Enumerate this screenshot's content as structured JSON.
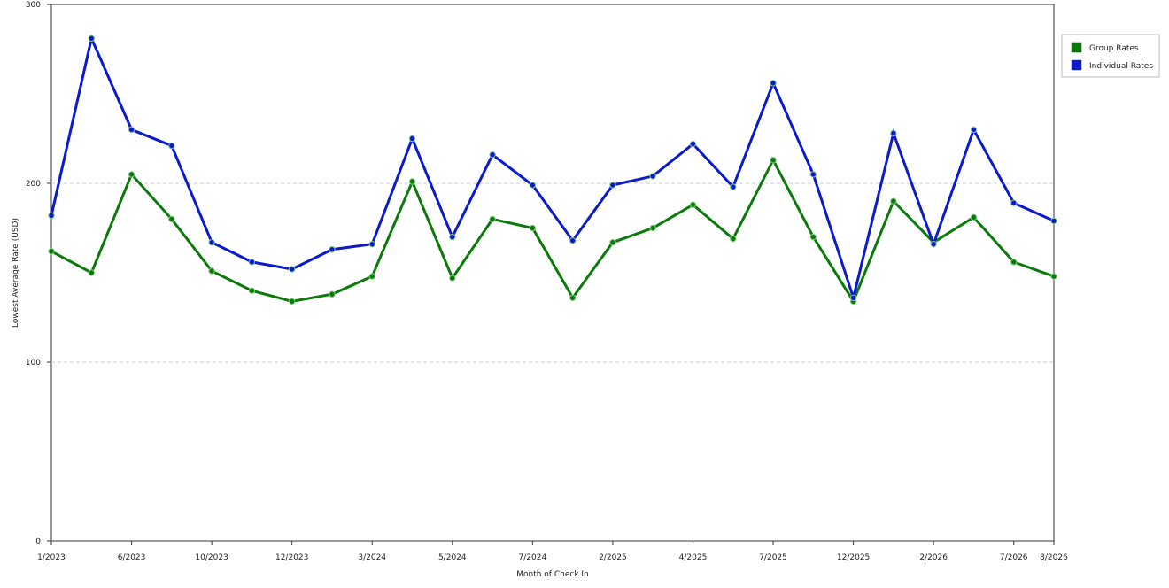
{
  "chart_data": {
    "type": "line",
    "x_label": "Month of Check In",
    "y_label": "Lowest Average Rate (USD)",
    "categories": [
      "1/2023",
      null,
      "6/2023",
      null,
      "10/2023",
      null,
      "12/2023",
      null,
      "3/2024",
      null,
      "5/2024",
      null,
      "7/2024",
      null,
      "2/2025",
      null,
      "4/2025",
      null,
      "7/2025",
      null,
      "12/2025",
      null,
      "2/2026",
      null,
      "7/2026",
      "8/2026"
    ],
    "series": [
      {
        "name": "Group Rates",
        "color": "#0a7a0a",
        "values": [
          162,
          150,
          205,
          180,
          151,
          140,
          134,
          138,
          148,
          201,
          147,
          180,
          175,
          136,
          167,
          175,
          188,
          169,
          213,
          170,
          134,
          190,
          167,
          181,
          156,
          148
        ]
      },
      {
        "name": "Individual Rates",
        "color": "#0a1acc",
        "values": [
          182,
          281,
          230,
          221,
          167,
          156,
          152,
          163,
          166,
          225,
          170,
          216,
          199,
          168,
          199,
          204,
          222,
          198,
          256,
          205,
          136,
          228,
          166,
          230,
          189,
          179
        ]
      }
    ],
    "ylim": [
      0,
      300
    ],
    "yticks": [
      0,
      100,
      200,
      300
    ],
    "grid": true,
    "legend": "right"
  }
}
